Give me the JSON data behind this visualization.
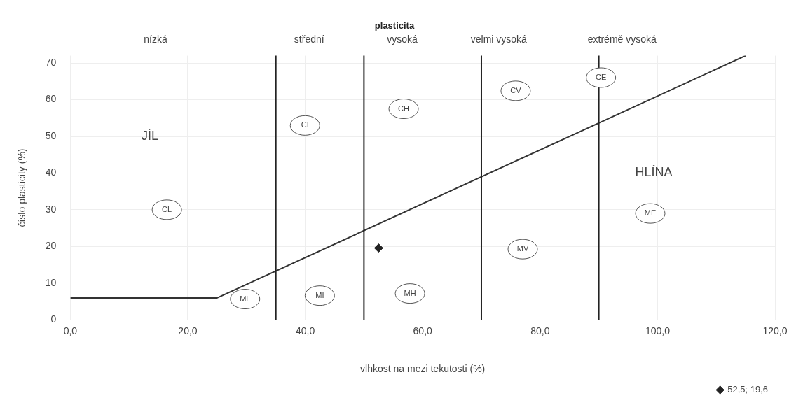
{
  "chart_data": {
    "type": "scatter",
    "title": "plasticita",
    "xlabel": "vlhkost na mezi tekutosti (%)",
    "ylabel": "číslo plasticity (%)",
    "xlim": [
      0,
      120
    ],
    "xticks": [
      {
        "value": 0,
        "label": "0,0"
      },
      {
        "value": 20,
        "label": "20,0"
      },
      {
        "value": 40,
        "label": "40,0"
      },
      {
        "value": 60,
        "label": "60,0"
      },
      {
        "value": 80,
        "label": "80,0"
      },
      {
        "value": 100,
        "label": "100,0"
      },
      {
        "value": 120,
        "label": "120,0"
      }
    ],
    "ylim": [
      0,
      72
    ],
    "yticks": [
      0,
      10,
      20,
      30,
      40,
      50,
      60,
      70
    ],
    "series": [
      {
        "type": "line",
        "color": "#333333",
        "x": [
          0,
          25,
          115
        ],
        "values": [
          6,
          6,
          72
        ],
        "marker": "none"
      },
      {
        "type": "scatter",
        "name": "52,5; 19,6",
        "color": "#222222",
        "x": [
          52.5
        ],
        "values": [
          19.6
        ],
        "marker": "diamond"
      }
    ],
    "ref_lines": [
      {
        "axis": "x",
        "value": 35,
        "color": "#222222"
      },
      {
        "axis": "x",
        "value": 50,
        "color": "#222222"
      },
      {
        "axis": "x",
        "value": 70,
        "color": "#222222"
      },
      {
        "axis": "x",
        "value": 90,
        "color": "#222222"
      }
    ],
    "annotations": [
      "nízká",
      "střední",
      "vysoká",
      "velmi vysoká",
      "extrémě vysoká",
      "JÍL",
      "HLÍNA",
      "CL",
      "CI",
      "CH",
      "CV",
      "CE",
      "ML",
      "MI",
      "MH",
      "MV",
      "ME"
    ],
    "grid": true,
    "legend": "bottom right"
  }
}
